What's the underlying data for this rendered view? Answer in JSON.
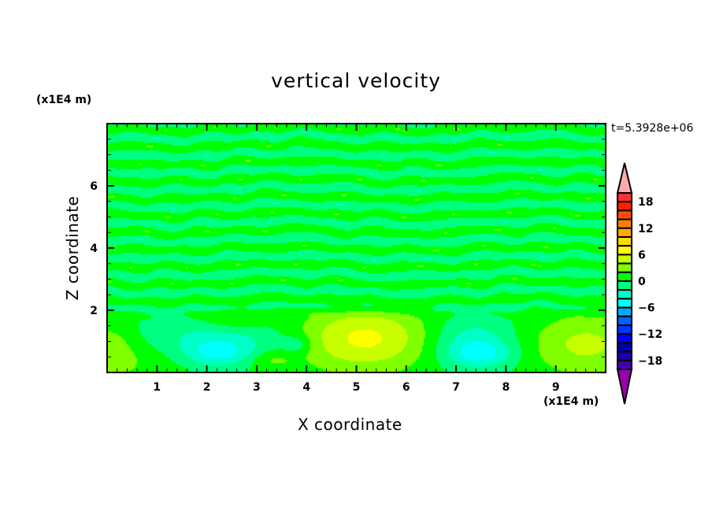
{
  "chart_data": {
    "type": "heatmap",
    "title": "vertical velocity",
    "xlabel": "X coordinate",
    "ylabel": "Z coordinate",
    "x_unit": "(x1E4 m)",
    "y_unit": "(x1E4 m)",
    "annotation": "t=5.3928e+06",
    "xlim": [
      0,
      10
    ],
    "ylim": [
      0,
      8
    ],
    "x_ticks": [
      "1",
      "2",
      "3",
      "4",
      "5",
      "6",
      "7",
      "8",
      "9"
    ],
    "y_ticks": [
      "2",
      "4",
      "6"
    ],
    "grid": false,
    "colorbar": {
      "levels": [
        -20,
        -18,
        -16,
        -14,
        -12,
        -10,
        -8,
        -6,
        -4,
        -2,
        0,
        2,
        4,
        6,
        8,
        10,
        12,
        14,
        16,
        18,
        20
      ],
      "labels": [
        "18",
        "12",
        "6",
        "0",
        "-6",
        "-12",
        "-18"
      ],
      "label_values": [
        18,
        12,
        6,
        0,
        -6,
        -12,
        -18
      ],
      "colors_top_to_bottom": [
        "#ff3030",
        "#ff2000",
        "#ff5000",
        "#ff8000",
        "#ffaa00",
        "#ffd800",
        "#ffff00",
        "#c8ff00",
        "#80ff00",
        "#00ff00",
        "#00ff80",
        "#00ffc8",
        "#00ffff",
        "#00aaff",
        "#0060ff",
        "#0034ff",
        "#0000ff",
        "#0000aa",
        "#1a00aa",
        "#4400aa"
      ],
      "over_color": "#ffaaaa",
      "under_color": "#9900aa",
      "extend": "both"
    }
  }
}
